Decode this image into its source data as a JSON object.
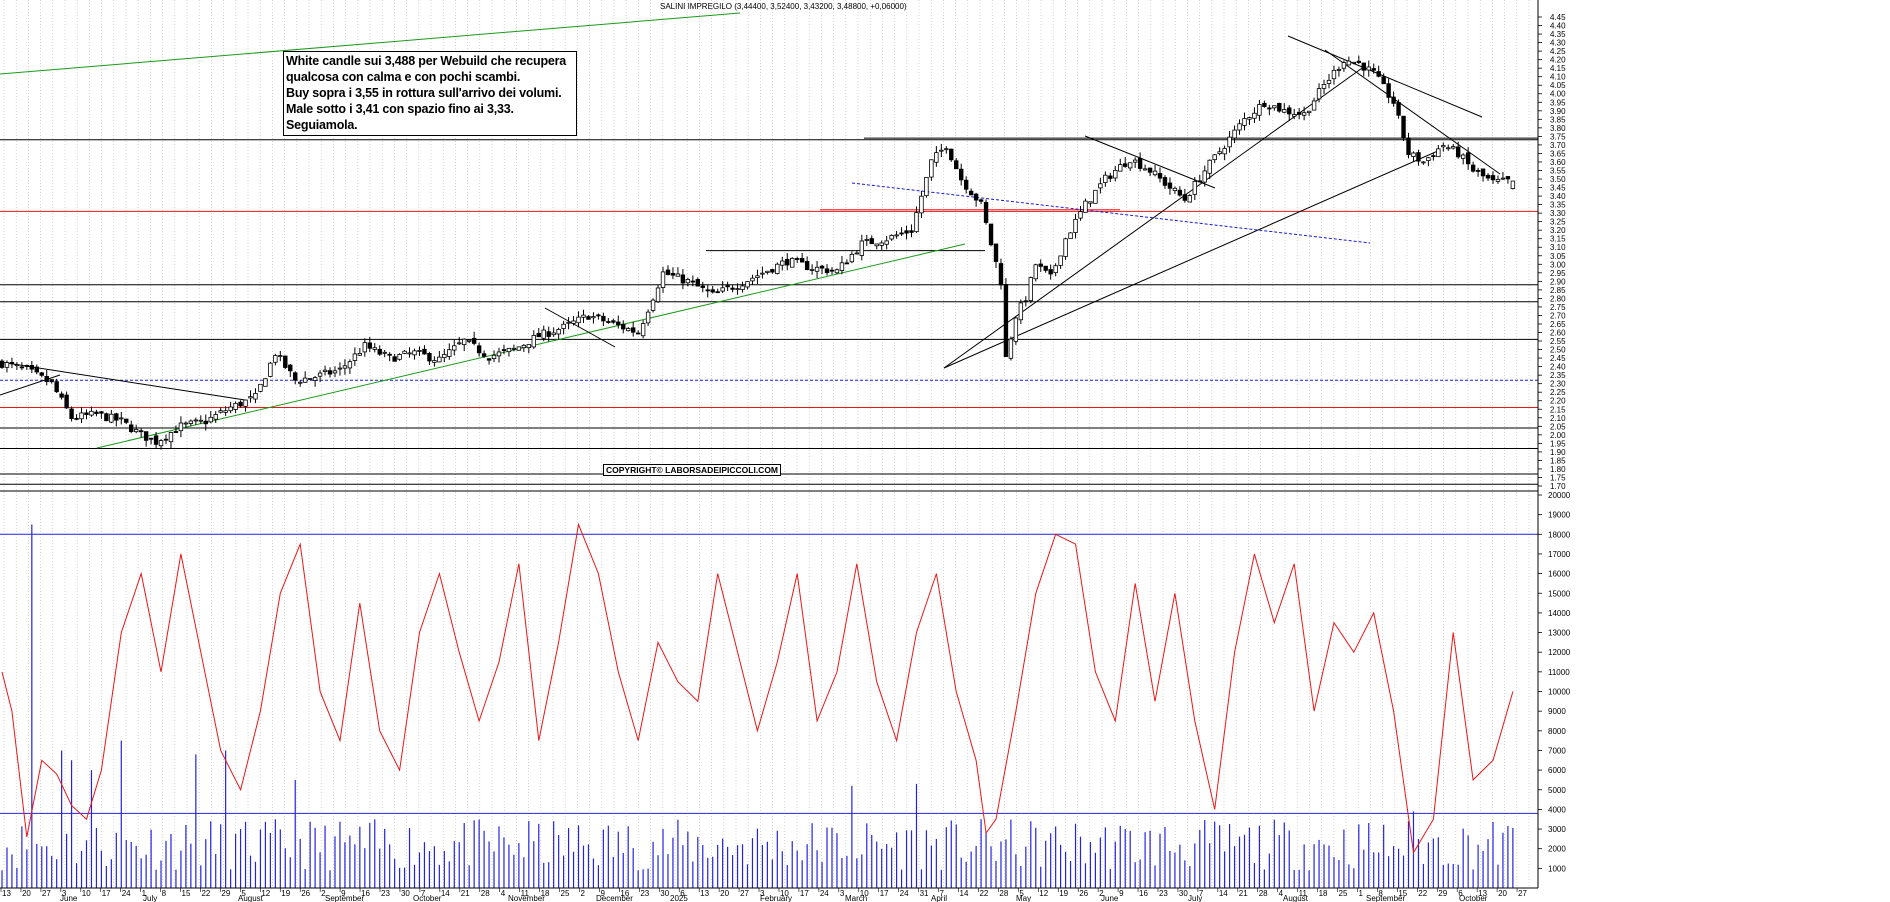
{
  "header": "SALINI IMPREGILO (3,44400, 3,52400, 3,43200, 3,48800, +0,06000)",
  "annotation": [
    "White candle sui 3,488 per Webuild che recupera",
    "qualcosa con calma e con pochi scambi.",
    "Buy sopra i 3,55 in rottura sull'arrivo dei volumi.",
    "Male sotto i 3,41 con spazio fino ai 3,33.",
    "Seguiamola."
  ],
  "copyright": "COPYRIGHT© LABORSADEIPICCOLI.COM",
  "x_axis": {
    "day_ticks": [
      "13",
      "20",
      "27",
      "3",
      "10",
      "17",
      "24",
      "1",
      "8",
      "15",
      "22",
      "29",
      "5",
      "12",
      "19",
      "26",
      "2",
      "9",
      "16",
      "23",
      "30",
      "7",
      "14",
      "21",
      "28",
      "4",
      "11",
      "18",
      "25",
      "2",
      "9",
      "16",
      "23",
      "30",
      "6",
      "13",
      "20",
      "27",
      "3",
      "10",
      "17",
      "24",
      "3",
      "10",
      "17",
      "24",
      "31",
      "7",
      "14",
      "22",
      "28",
      "5",
      "12",
      "19",
      "26",
      "2",
      "9",
      "16",
      "23",
      "30",
      "7",
      "14",
      "21",
      "28",
      "4",
      "11",
      "18",
      "25",
      "1",
      "8",
      "15",
      "22",
      "29",
      "6",
      "13",
      "20",
      "27"
    ],
    "month_labels": [
      "June",
      "July",
      "August",
      "September",
      "October",
      "November",
      "December",
      "2025",
      "February",
      "March",
      "April",
      "May",
      "June",
      "July",
      "August",
      "September",
      "October"
    ]
  },
  "price_axis": {
    "min": 1.7,
    "max": 4.45,
    "step": 0.05,
    "labels": [
      "4.45",
      "4.40",
      "4.35",
      "4.30",
      "4.25",
      "4.20",
      "4.15",
      "4.10",
      "4.05",
      "4.00",
      "3.95",
      "3.90",
      "3.85",
      "3.80",
      "3.75",
      "3.70",
      "3.65",
      "3.60",
      "3.55",
      "3.50",
      "3.45",
      "3.40",
      "3.35",
      "3.30",
      "3.25",
      "3.20",
      "3.15",
      "3.10",
      "3.05",
      "3.00",
      "2.95",
      "2.90",
      "2.85",
      "2.80",
      "2.75",
      "2.70",
      "2.65",
      "2.60",
      "2.55",
      "2.50",
      "2.45",
      "2.40",
      "2.35",
      "2.30",
      "2.25",
      "2.20",
      "2.15",
      "2.10",
      "2.05",
      "2.00",
      "1.95",
      "1.90",
      "1.85",
      "1.80",
      "1.75",
      "1.70"
    ]
  },
  "volume_axis": {
    "min": 0,
    "max": 20000,
    "step": 1000,
    "labels": [
      "20000",
      "19000",
      "18000",
      "17000",
      "16000",
      "15000",
      "14000",
      "13000",
      "12000",
      "11000",
      "10000",
      "9000",
      "8000",
      "7000",
      "6000",
      "5000",
      "4000",
      "3000",
      "2000",
      "1000"
    ]
  },
  "colors": {
    "candle": "#000000",
    "support_red": "#e81818",
    "trend_green": "#1a9a1a",
    "dashed_blue": "#1a1ad8",
    "volume_bar": "#2424e0",
    "volume_ma": "#e81818",
    "grid": "#b8b8b8"
  },
  "chart_data": {
    "type": "candlestick",
    "title": "SALINI IMPREGILO (3,44400, 3,52400, 3,43200, 3,48800, +0,06000)",
    "last_bar": {
      "open": 3.444,
      "high": 3.524,
      "low": 3.432,
      "close": 3.488,
      "change": 0.06
    },
    "price_range": [
      1.7,
      4.45
    ],
    "horizontal_levels": [
      {
        "value": 3.73,
        "color": "black"
      },
      {
        "value": 3.31,
        "color": "red"
      },
      {
        "value": 2.88,
        "color": "black"
      },
      {
        "value": 2.78,
        "color": "black"
      },
      {
        "value": 2.56,
        "color": "black"
      },
      {
        "value": 2.32,
        "color": "blue-dashed"
      },
      {
        "value": 2.16,
        "color": "red"
      },
      {
        "value": 2.04,
        "color": "black"
      },
      {
        "value": 1.92,
        "color": "black"
      },
      {
        "value": 1.77,
        "color": "black"
      },
      {
        "value": 1.71,
        "color": "black"
      }
    ],
    "segment_levels": [
      {
        "value": 3.08,
        "color": "black"
      },
      {
        "value": 3.74,
        "color": "black"
      },
      {
        "value": 3.32,
        "color": "red"
      }
    ],
    "close_path": [
      [
        0,
        2.42
      ],
      [
        5,
        2.38
      ],
      [
        10,
        2.3
      ],
      [
        14,
        2.1
      ],
      [
        19,
        2.12
      ],
      [
        24,
        2.08
      ],
      [
        28,
        2.0
      ],
      [
        31,
        1.96
      ],
      [
        36,
        2.05
      ],
      [
        41,
        2.08
      ],
      [
        46,
        2.16
      ],
      [
        51,
        2.22
      ],
      [
        55,
        2.48
      ],
      [
        59,
        2.32
      ],
      [
        63,
        2.34
      ],
      [
        68,
        2.38
      ],
      [
        73,
        2.52
      ],
      [
        78,
        2.45
      ],
      [
        83,
        2.48
      ],
      [
        88,
        2.44
      ],
      [
        93,
        2.55
      ],
      [
        98,
        2.46
      ],
      [
        103,
        2.5
      ],
      [
        108,
        2.58
      ],
      [
        113,
        2.63
      ],
      [
        118,
        2.7
      ],
      [
        123,
        2.65
      ],
      [
        128,
        2.6
      ],
      [
        133,
        2.95
      ],
      [
        138,
        2.9
      ],
      [
        143,
        2.82
      ],
      [
        148,
        2.88
      ],
      [
        153,
        2.95
      ],
      [
        158,
        3.02
      ],
      [
        163,
        2.98
      ],
      [
        168,
        2.96
      ],
      [
        173,
        3.12
      ],
      [
        178,
        3.15
      ],
      [
        183,
        3.2
      ],
      [
        187,
        3.6
      ],
      [
        190,
        3.7
      ],
      [
        193,
        3.5
      ],
      [
        197,
        3.35
      ],
      [
        199,
        3.12
      ],
      [
        201,
        2.9
      ],
      [
        202,
        2.45
      ],
      [
        204,
        2.7
      ],
      [
        206,
        2.8
      ],
      [
        208,
        3.0
      ],
      [
        211,
        2.92
      ],
      [
        214,
        3.15
      ],
      [
        218,
        3.35
      ],
      [
        222,
        3.5
      ],
      [
        224,
        3.55
      ],
      [
        227,
        3.62
      ],
      [
        231,
        3.55
      ],
      [
        235,
        3.45
      ],
      [
        238,
        3.38
      ],
      [
        242,
        3.55
      ],
      [
        246,
        3.7
      ],
      [
        250,
        3.85
      ],
      [
        254,
        3.95
      ],
      [
        258,
        3.9
      ],
      [
        262,
        3.88
      ],
      [
        266,
        4.05
      ],
      [
        270,
        4.2
      ],
      [
        273,
        4.18
      ],
      [
        276,
        4.12
      ],
      [
        280,
        3.95
      ],
      [
        283,
        3.65
      ],
      [
        286,
        3.6
      ],
      [
        290,
        3.7
      ],
      [
        293,
        3.65
      ],
      [
        296,
        3.55
      ],
      [
        300,
        3.48
      ],
      [
        304,
        3.49
      ]
    ],
    "volume_spikes": [
      18500,
      7000,
      6500,
      6000,
      7500,
      7000,
      4000,
      6800,
      4500,
      5200,
      5500
    ],
    "volume_reference_levels": [
      18000,
      3800
    ],
    "volume_ma_path": [
      [
        0,
        11000
      ],
      [
        2,
        9000
      ],
      [
        5,
        2600
      ],
      [
        8,
        6500
      ],
      [
        11,
        5800
      ],
      [
        14,
        4200
      ],
      [
        17,
        3500
      ],
      [
        20,
        6000
      ],
      [
        24,
        13000
      ],
      [
        28,
        16000
      ],
      [
        32,
        11000
      ],
      [
        36,
        17000
      ],
      [
        40,
        12000
      ],
      [
        44,
        7000
      ],
      [
        48,
        5000
      ],
      [
        52,
        9000
      ],
      [
        56,
        15000
      ],
      [
        60,
        17500
      ],
      [
        64,
        10000
      ],
      [
        68,
        7500
      ],
      [
        72,
        14500
      ],
      [
        76,
        8000
      ],
      [
        80,
        6000
      ],
      [
        84,
        13000
      ],
      [
        88,
        16000
      ],
      [
        92,
        12000
      ],
      [
        96,
        8500
      ],
      [
        100,
        11500
      ],
      [
        104,
        16500
      ],
      [
        108,
        7500
      ],
      [
        112,
        12500
      ],
      [
        116,
        18500
      ],
      [
        120,
        16000
      ],
      [
        124,
        11000
      ],
      [
        128,
        7500
      ],
      [
        132,
        12500
      ],
      [
        136,
        10500
      ],
      [
        140,
        9500
      ],
      [
        144,
        16000
      ],
      [
        148,
        12000
      ],
      [
        152,
        8000
      ],
      [
        156,
        11500
      ],
      [
        160,
        16000
      ],
      [
        164,
        8500
      ],
      [
        168,
        11000
      ],
      [
        172,
        16500
      ],
      [
        176,
        10500
      ],
      [
        180,
        7500
      ],
      [
        184,
        13000
      ],
      [
        188,
        16000
      ],
      [
        192,
        10000
      ],
      [
        196,
        6500
      ],
      [
        198,
        2800
      ],
      [
        200,
        3500
      ],
      [
        204,
        9000
      ],
      [
        208,
        15000
      ],
      [
        212,
        18000
      ],
      [
        216,
        17500
      ],
      [
        220,
        11000
      ],
      [
        224,
        8500
      ],
      [
        228,
        15500
      ],
      [
        232,
        9500
      ],
      [
        236,
        15000
      ],
      [
        240,
        8500
      ],
      [
        244,
        4000
      ],
      [
        248,
        12000
      ],
      [
        252,
        17000
      ],
      [
        256,
        13500
      ],
      [
        260,
        16500
      ],
      [
        264,
        9000
      ],
      [
        268,
        13500
      ],
      [
        272,
        12000
      ],
      [
        276,
        14000
      ],
      [
        280,
        9000
      ],
      [
        284,
        1800
      ],
      [
        288,
        3500
      ],
      [
        292,
        13000
      ],
      [
        296,
        5500
      ],
      [
        300,
        6500
      ],
      [
        304,
        10000
      ]
    ]
  }
}
